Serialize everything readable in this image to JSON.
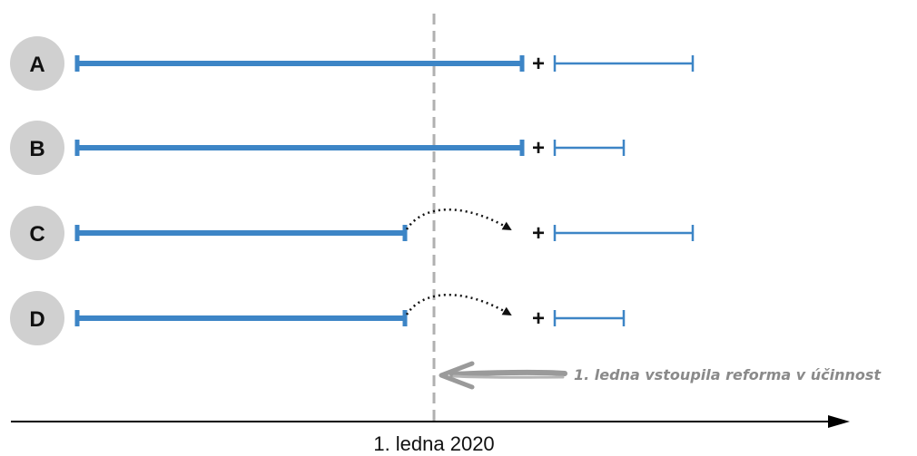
{
  "diagram": {
    "rows": [
      {
        "label": "A",
        "plus": "+"
      },
      {
        "label": "B",
        "plus": "+"
      },
      {
        "label": "C",
        "plus": "+"
      },
      {
        "label": "D",
        "plus": "+"
      }
    ],
    "reform_note": "1. ledna vstoupila reforma v účinnost",
    "axis_label": "1. ledna 2020"
  },
  "colors": {
    "bar": "#3d85c6",
    "circle": "#d0d0d0",
    "dashed_line": "#b0b0b0",
    "note_arrow": "#9a9a9a",
    "axis": "#000000"
  }
}
